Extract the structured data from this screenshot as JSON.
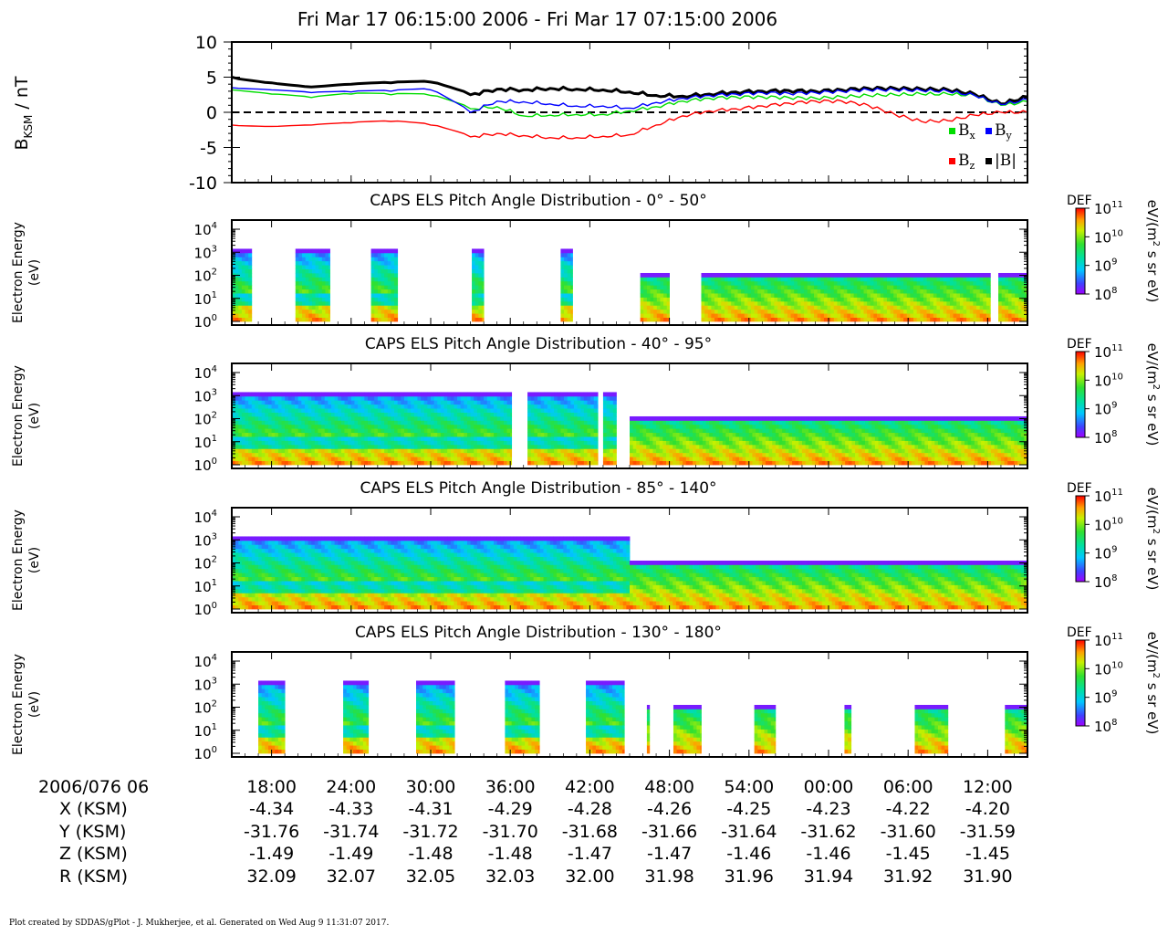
{
  "header": {
    "title": "Fri Mar 17 06:15:00 2006 - Fri Mar 17 07:15:00 2006"
  },
  "footer": {
    "text": "Plot created by SDDAS/gPlot - J. Mukherjee, et al.  Generated on Wed Aug 9 11:31:07 2017."
  },
  "chart_data": [
    {
      "type": "line",
      "ylabel": "BKSM / nT",
      "ylim": [
        -10,
        10
      ],
      "yticks": [
        "10",
        "5",
        "0",
        "-5",
        "-10"
      ],
      "time_range_min": [
        0,
        60
      ],
      "reference_line": 0,
      "legend": [
        {
          "name": "Bx",
          "color": "#00dd00"
        },
        {
          "name": "By",
          "color": "#0000ff"
        },
        {
          "name": "Bz",
          "color": "#ff0000"
        },
        {
          "name": "|B|",
          "color": "#000000"
        }
      ],
      "x_minutes": [
        0,
        3,
        6,
        9,
        12,
        15,
        18,
        20,
        22,
        24,
        26,
        28,
        30,
        32,
        34,
        36,
        38,
        40,
        42,
        44,
        46,
        48,
        50,
        52,
        54,
        56,
        58,
        60
      ],
      "series": [
        {
          "name": "Bx",
          "color": "#00dd00",
          "values": [
            3.2,
            2.6,
            2.1,
            2.6,
            2.5,
            2.4,
            0.5,
            0.8,
            -0.5,
            -0.4,
            -0.3,
            -0.3,
            0.2,
            0.8,
            1.6,
            2.0,
            2.2,
            2.2,
            2.1,
            2.0,
            2.2,
            2.4,
            2.5,
            2.6,
            2.6,
            2.4,
            1.0,
            1.5
          ]
        },
        {
          "name": "By",
          "color": "#0000ff",
          "values": [
            3.5,
            3.2,
            2.8,
            2.9,
            3.0,
            3.2,
            0.0,
            1.6,
            1.5,
            1.2,
            0.9,
            0.9,
            0.6,
            1.4,
            2.0,
            2.4,
            2.6,
            2.8,
            2.7,
            2.8,
            3.0,
            3.2,
            3.2,
            3.1,
            3.0,
            2.4,
            1.1,
            1.8
          ]
        },
        {
          "name": "Bz",
          "color": "#ff0000",
          "values": [
            -1.8,
            -2.0,
            -1.8,
            -1.5,
            -1.3,
            -1.8,
            -3.5,
            -3.0,
            -3.3,
            -3.6,
            -3.6,
            -3.4,
            -3.2,
            -1.8,
            -0.5,
            0.2,
            0.5,
            0.9,
            1.3,
            1.6,
            1.6,
            1.0,
            -0.3,
            -1.3,
            -1.2,
            -0.4,
            0.0,
            0.0
          ]
        },
        {
          "name": "|B|",
          "color": "#000000",
          "values": [
            5.0,
            4.2,
            3.6,
            4.0,
            4.2,
            4.3,
            2.5,
            3.3,
            3.2,
            3.4,
            3.3,
            3.2,
            2.9,
            2.4,
            2.3,
            2.6,
            2.9,
            3.0,
            3.1,
            3.0,
            3.2,
            3.4,
            3.4,
            3.3,
            3.2,
            2.6,
            1.2,
            2.2
          ]
        }
      ]
    },
    {
      "type": "heatmap",
      "title": "CAPS ELS Pitch Angle Distribution - 0° - 50°",
      "ylabel": [
        "Electron Energy",
        "(eV)"
      ],
      "yscale": "log",
      "yticks": [
        "100",
        "101",
        "102",
        "103",
        "104"
      ],
      "colorbar": {
        "label": "eV/(m2 s sr eV)",
        "name": "DEF",
        "ticks": [
          "108",
          "109",
          "1010",
          "1011"
        ]
      },
      "data_intervals_min": [
        [
          0,
          1.5
        ],
        [
          4.8,
          7.4
        ],
        [
          10.5,
          12.5
        ],
        [
          18.1,
          19
        ],
        [
          24.8,
          25.7
        ],
        [
          30.8,
          33
        ],
        [
          35.4,
          57.2
        ],
        [
          57.8,
          60
        ]
      ]
    },
    {
      "type": "heatmap",
      "title": "CAPS ELS Pitch Angle Distribution - 40° - 95°",
      "ylabel": [
        "Electron Energy",
        "(eV)"
      ],
      "yscale": "log",
      "yticks": [
        "100",
        "101",
        "102",
        "103",
        "104"
      ],
      "colorbar": {
        "label": "eV/(m2 s sr eV)",
        "name": "DEF",
        "ticks": [
          "108",
          "109",
          "1010",
          "1011"
        ]
      },
      "data_intervals_min": [
        [
          0,
          21.1
        ],
        [
          22.3,
          27.6
        ],
        [
          28,
          29
        ],
        [
          30,
          60
        ]
      ]
    },
    {
      "type": "heatmap",
      "title": "CAPS ELS Pitch Angle Distribution - 85° - 140°",
      "ylabel": [
        "Electron Energy",
        "(eV)"
      ],
      "yscale": "log",
      "yticks": [
        "100",
        "101",
        "102",
        "103",
        "104"
      ],
      "colorbar": {
        "label": "eV/(m2 s sr eV)",
        "name": "DEF",
        "ticks": [
          "108",
          "109",
          "1010",
          "1011"
        ]
      },
      "data_intervals_min": [
        [
          0,
          60
        ]
      ]
    },
    {
      "type": "heatmap",
      "title": "CAPS ELS Pitch Angle Distribution - 130° - 180°",
      "ylabel": [
        "Electron Energy",
        "(eV)"
      ],
      "yscale": "log",
      "yticks": [
        "100",
        "101",
        "102",
        "103",
        "104"
      ],
      "colorbar": {
        "label": "eV/(m2 s sr eV)",
        "name": "DEF",
        "ticks": [
          "108",
          "109",
          "1010",
          "1011"
        ]
      },
      "data_intervals_min": [
        [
          2,
          4
        ],
        [
          8.4,
          10.3
        ],
        [
          13.9,
          16.8
        ],
        [
          20.6,
          23.2
        ],
        [
          26.7,
          29.6
        ],
        [
          31.3,
          31.5
        ],
        [
          33.3,
          35.4
        ],
        [
          39.4,
          41
        ],
        [
          46.2,
          46.7
        ],
        [
          51.5,
          54
        ],
        [
          58.3,
          60
        ]
      ]
    }
  ],
  "time_axis": {
    "start_label": "2006/076 06",
    "ticks": [
      {
        "time": "18:00",
        "x": "-4.34",
        "y": "-31.76",
        "z": "-1.49",
        "r": "32.09"
      },
      {
        "time": "24:00",
        "x": "-4.33",
        "y": "-31.74",
        "z": "-1.49",
        "r": "32.07"
      },
      {
        "time": "30:00",
        "x": "-4.31",
        "y": "-31.72",
        "z": "-1.48",
        "r": "32.05"
      },
      {
        "time": "36:00",
        "x": "-4.29",
        "y": "-31.70",
        "z": "-1.48",
        "r": "32.03"
      },
      {
        "time": "42:00",
        "x": "-4.28",
        "y": "-31.68",
        "z": "-1.47",
        "r": "32.00"
      },
      {
        "time": "48:00",
        "x": "-4.26",
        "y": "-31.66",
        "z": "-1.47",
        "r": "31.98"
      },
      {
        "time": "54:00",
        "x": "-4.25",
        "y": "-31.64",
        "z": "-1.46",
        "r": "31.96"
      },
      {
        "time": "00:00",
        "x": "-4.23",
        "y": "-31.62",
        "z": "-1.46",
        "r": "31.94"
      },
      {
        "time": "06:00",
        "x": "-4.22",
        "y": "-31.60",
        "z": "-1.45",
        "r": "31.92"
      },
      {
        "time": "12:00",
        "x": "-4.20",
        "y": "-31.59",
        "z": "-1.45",
        "r": "31.90"
      }
    ],
    "tick_minutes": [
      3,
      9,
      15,
      21,
      27,
      33,
      39,
      45,
      51,
      57
    ],
    "row_labels": {
      "x": "X (KSM)",
      "y": "Y (KSM)",
      "z": "Z (KSM)",
      "r": "R (KSM)"
    }
  }
}
